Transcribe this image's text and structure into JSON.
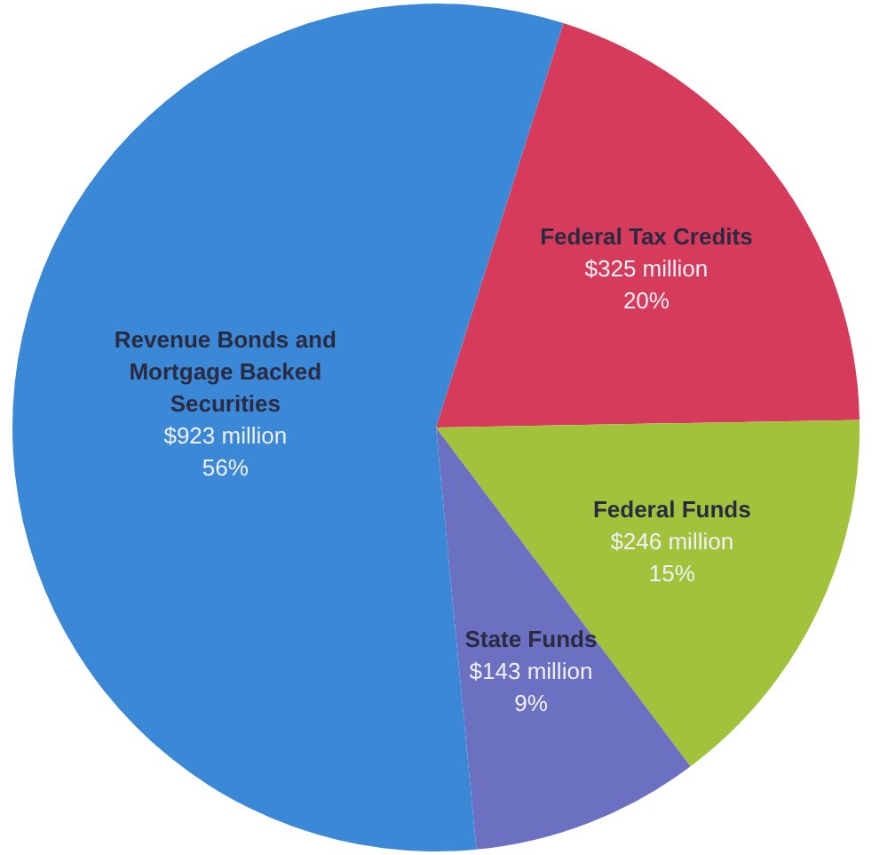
{
  "chart_data": {
    "type": "pie",
    "categories": [
      "Federal Tax Credits",
      "Federal Funds",
      "State Funds",
      "Revenue Bonds and Mortgage Backed Securities"
    ],
    "values": [
      325,
      246,
      143,
      923
    ],
    "colors": [
      "#d63b5c",
      "#a2c23c",
      "#6b70c0",
      "#3b88d6"
    ],
    "value_labels": [
      "$325 million",
      "$246 million",
      "$143 million",
      "$923 million"
    ],
    "annotations": [
      "20%",
      "15%",
      "9%",
      "56%"
    ],
    "legend": false
  }
}
